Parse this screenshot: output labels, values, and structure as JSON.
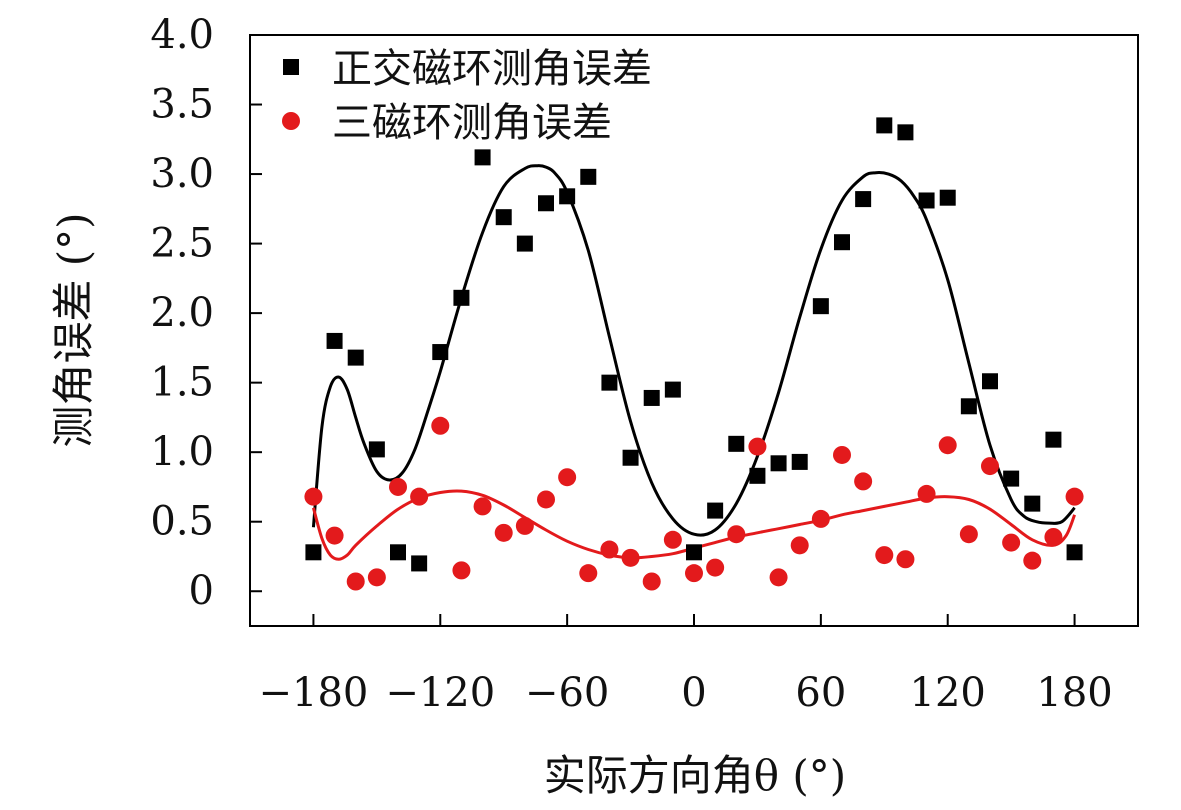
{
  "chart_data": {
    "type": "scatter",
    "xlabel": "实际方向角θ (°)",
    "ylabel": "测角误差 (°)",
    "xlim": [
      -210,
      210
    ],
    "ylim": [
      -0.25,
      4.0
    ],
    "xticks": [
      -180,
      -120,
      -60,
      0,
      60,
      120,
      180
    ],
    "xtick_labels": [
      "−180",
      "−120",
      "−60",
      "0",
      "60",
      "120",
      "180"
    ],
    "yticks": [
      0,
      0.5,
      1.0,
      1.5,
      2.0,
      2.5,
      3.0,
      3.5,
      4.0
    ],
    "ytick_labels": [
      "0",
      "0.5",
      "1.0",
      "1.5",
      "2.0",
      "2.5",
      "3.0",
      "3.5",
      "4.0"
    ],
    "legend_position": "top-left",
    "grid": false,
    "series": [
      {
        "name": "正交磁环测角误差",
        "marker": "square",
        "color": "#000000",
        "x": [
          -180,
          -170,
          -160,
          -150,
          -140,
          -130,
          -120,
          -110,
          -100,
          -90,
          -80,
          -70,
          -60,
          -50,
          -40,
          -30,
          -20,
          -10,
          0,
          10,
          20,
          30,
          40,
          50,
          60,
          70,
          80,
          90,
          100,
          110,
          120,
          130,
          140,
          150,
          160,
          170,
          180
        ],
        "y": [
          0.28,
          1.8,
          1.68,
          1.02,
          0.28,
          0.2,
          1.72,
          2.11,
          3.12,
          2.69,
          2.5,
          2.79,
          2.84,
          2.98,
          1.5,
          0.96,
          1.39,
          1.45,
          0.28,
          0.58,
          1.06,
          0.83,
          0.92,
          0.93,
          2.05,
          2.51,
          2.82,
          3.35,
          3.3,
          2.81,
          2.83,
          1.33,
          1.51,
          0.81,
          0.63,
          1.09,
          0.28
        ],
        "fit": {
          "x": [
            -180,
            -176,
            -172,
            -168,
            -164,
            -160,
            -156,
            -150,
            -144,
            -138,
            -132,
            -126,
            -120,
            -110,
            -100,
            -90,
            -80,
            -74,
            -70,
            -66,
            -60,
            -50,
            -40,
            -30,
            -20,
            -10,
            0,
            10,
            20,
            30,
            40,
            50,
            60,
            70,
            80,
            86,
            92,
            98,
            104,
            110,
            120,
            130,
            140,
            150,
            156,
            162,
            168,
            174,
            180
          ],
          "y": [
            0.46,
            1.18,
            1.47,
            1.54,
            1.45,
            1.25,
            1.06,
            0.86,
            0.8,
            0.85,
            1.02,
            1.29,
            1.58,
            2.11,
            2.58,
            2.91,
            3.04,
            3.06,
            3.05,
            3.01,
            2.87,
            2.45,
            1.83,
            1.22,
            0.78,
            0.52,
            0.41,
            0.44,
            0.63,
            0.97,
            1.43,
            1.97,
            2.46,
            2.81,
            2.98,
            3.01,
            3.0,
            2.95,
            2.84,
            2.67,
            2.24,
            1.64,
            1.05,
            0.66,
            0.54,
            0.5,
            0.49,
            0.5,
            0.6
          ]
        }
      },
      {
        "name": "三磁环测角误差",
        "marker": "circle",
        "color": "#e31a1c",
        "x": [
          -180,
          -170,
          -160,
          -150,
          -140,
          -130,
          -120,
          -110,
          -100,
          -90,
          -80,
          -70,
          -60,
          -50,
          -40,
          -30,
          -20,
          -10,
          0,
          10,
          20,
          30,
          40,
          50,
          60,
          70,
          80,
          90,
          100,
          110,
          120,
          130,
          140,
          150,
          160,
          170,
          180
        ],
        "y": [
          0.68,
          0.4,
          0.07,
          0.1,
          0.75,
          0.68,
          1.19,
          0.15,
          0.61,
          0.42,
          0.47,
          0.66,
          0.82,
          0.13,
          0.3,
          0.24,
          0.07,
          0.37,
          0.13,
          0.17,
          0.41,
          1.04,
          0.1,
          0.33,
          0.52,
          0.98,
          0.79,
          0.26,
          0.23,
          0.7,
          1.05,
          0.41,
          0.9,
          0.35,
          0.22,
          0.39,
          0.68
        ],
        "fit": {
          "x": [
            -180,
            -176,
            -172,
            -168,
            -164,
            -160,
            -150,
            -140,
            -130,
            -120,
            -110,
            -100,
            -90,
            -80,
            -70,
            -60,
            -50,
            -40,
            -30,
            -20,
            -10,
            0,
            10,
            20,
            30,
            40,
            50,
            60,
            70,
            80,
            90,
            100,
            110,
            120,
            130,
            140,
            150,
            160,
            170,
            176,
            180
          ],
          "y": [
            0.6,
            0.38,
            0.26,
            0.23,
            0.26,
            0.33,
            0.47,
            0.59,
            0.67,
            0.71,
            0.72,
            0.69,
            0.62,
            0.53,
            0.44,
            0.36,
            0.3,
            0.26,
            0.24,
            0.25,
            0.27,
            0.31,
            0.35,
            0.39,
            0.42,
            0.45,
            0.48,
            0.51,
            0.55,
            0.58,
            0.61,
            0.64,
            0.67,
            0.68,
            0.66,
            0.59,
            0.48,
            0.37,
            0.33,
            0.4,
            0.55
          ]
        }
      }
    ]
  }
}
